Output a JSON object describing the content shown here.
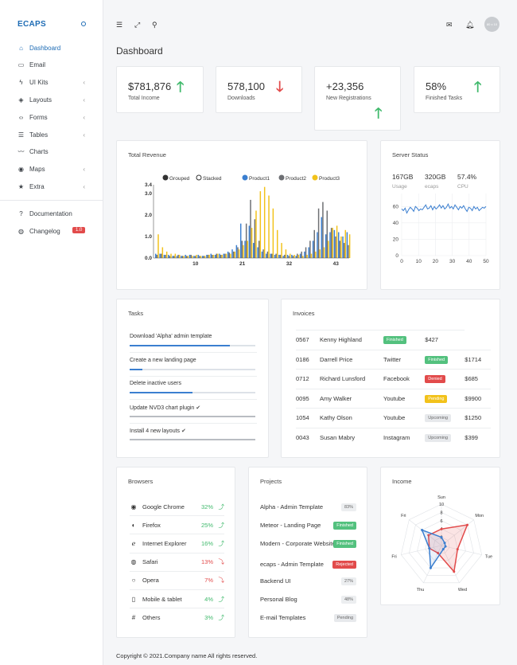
{
  "brand": "ECAPS",
  "sidebar": {
    "items": [
      {
        "label": "Dashboard",
        "icon": "home-icon",
        "glyph": "⌂",
        "chevron": false
      },
      {
        "label": "Email",
        "icon": "inbox-icon",
        "glyph": "▭",
        "chevron": false
      },
      {
        "label": "UI Kits",
        "icon": "bolt-icon",
        "glyph": "ϟ",
        "chevron": true
      },
      {
        "label": "Layouts",
        "icon": "layers-icon",
        "glyph": "◈",
        "chevron": true
      },
      {
        "label": "Forms",
        "icon": "code-icon",
        "glyph": "‹›",
        "chevron": true
      },
      {
        "label": "Tables",
        "icon": "list-icon",
        "glyph": "☰",
        "chevron": true
      },
      {
        "label": "Charts",
        "icon": "trend-icon",
        "glyph": "〰",
        "chevron": false
      },
      {
        "label": "Maps",
        "icon": "target-icon",
        "glyph": "◉",
        "chevron": true
      },
      {
        "label": "Extra",
        "icon": "star-icon",
        "glyph": "★",
        "chevron": true
      }
    ],
    "bottom": [
      {
        "label": "Documentation",
        "icon": "help-icon",
        "glyph": "?"
      },
      {
        "label": "Changelog",
        "icon": "globe-icon",
        "glyph": "◍"
      }
    ],
    "changelog_badge": "1.0",
    "chevron_glyph": "‹"
  },
  "topbar": {
    "avatar_text": "80 x 10"
  },
  "page_title": "Dashboard",
  "stats": [
    {
      "value": "$781,876",
      "label": "Total Income",
      "trend": "up"
    },
    {
      "value": "578,100",
      "label": "Downloads",
      "trend": "down"
    },
    {
      "value": "+23,356",
      "label": "New Registrations",
      "trend": "up"
    },
    {
      "value": "58%",
      "label": "Finished Tasks",
      "trend": "up"
    }
  ],
  "revenue": {
    "title": "Total Revenue",
    "legend": {
      "grouped": "Grouped",
      "stacked": "Stacked"
    },
    "chart_data": {
      "type": "bar",
      "ylim": [
        0,
        3.4
      ],
      "y_ticks": [
        "0.0",
        "1.0",
        "2.0",
        "3.0",
        "3.4"
      ],
      "x_ticks": [
        "10",
        "21",
        "32",
        "43"
      ],
      "series": [
        {
          "name": "Product1",
          "color": "#3b7fd0",
          "values": [
            0.2,
            0.2,
            0.15,
            0.15,
            0.1,
            0.1,
            0.1,
            0.15,
            0.15,
            0.1,
            0.15,
            0.1,
            0.15,
            0.2,
            0.15,
            0.2,
            0.2,
            0.3,
            0.4,
            0.6,
            1.6,
            0.8,
            1.5,
            0.7,
            0.5,
            0.3,
            0.2,
            0.2,
            0.15,
            0.15,
            0.1,
            0.15,
            0.15,
            0.1,
            0.2,
            0.3,
            0.5,
            0.8,
            1.2,
            1.9,
            1.1,
            1.2,
            1.3,
            1.2,
            1.0,
            1.2
          ]
        },
        {
          "name": "Product2",
          "color": "#6d6f73",
          "values": [
            0.15,
            0.2,
            0.15,
            0.1,
            0.1,
            0.15,
            0.1,
            0.1,
            0.15,
            0.1,
            0.1,
            0.1,
            0.15,
            0.15,
            0.2,
            0.15,
            0.2,
            0.25,
            0.3,
            0.5,
            0.8,
            1.6,
            2.7,
            1.8,
            0.8,
            0.4,
            0.3,
            0.2,
            0.2,
            0.15,
            0.15,
            0.1,
            0.1,
            0.2,
            0.3,
            0.5,
            0.8,
            1.3,
            2.3,
            2.6,
            2.2,
            1.4,
            1.0,
            0.8,
            0.7,
            0.6
          ]
        },
        {
          "name": "Product3",
          "color": "#f2c21b",
          "values": [
            1.1,
            0.5,
            0.3,
            0.2,
            0.2,
            0.15,
            0.1,
            0.1,
            0.1,
            0.15,
            0.1,
            0.1,
            0.15,
            0.15,
            0.2,
            0.15,
            0.2,
            0.2,
            0.3,
            0.4,
            0.6,
            0.8,
            1.4,
            2.2,
            3.1,
            3.3,
            2.9,
            2.3,
            1.3,
            0.7,
            0.4,
            0.2,
            0.15,
            0.15,
            0.1,
            0.15,
            0.2,
            0.3,
            0.4,
            0.5,
            0.8,
            1.4,
            1.5,
            1.0,
            1.3,
            1.1
          ]
        }
      ]
    }
  },
  "server": {
    "title": "Server Status",
    "metrics": [
      {
        "value": "167GB",
        "label": "Usage"
      },
      {
        "value": "320GB",
        "label": "ecaps"
      },
      {
        "value": "57.4%",
        "label": "CPU"
      }
    ],
    "chart_data": {
      "type": "line",
      "xlim": [
        0,
        50
      ],
      "ylim": [
        0,
        70
      ],
      "x_ticks": [
        "0",
        "10",
        "20",
        "30",
        "40",
        "50"
      ],
      "y_ticks": [
        "0",
        "20",
        "40",
        "60"
      ],
      "color": "#3b7fd0",
      "values": [
        57,
        55,
        58,
        52,
        56,
        59,
        57,
        54,
        60,
        58,
        55,
        57,
        56,
        59,
        62,
        57,
        58,
        61,
        56,
        60,
        57,
        59,
        62,
        58,
        61,
        57,
        59,
        63,
        58,
        60,
        57,
        62,
        59,
        56,
        60,
        58,
        61,
        57,
        54,
        59,
        58,
        55,
        60,
        57,
        59,
        55,
        57,
        59,
        58,
        60
      ]
    }
  },
  "tasks": {
    "title": "Tasks",
    "items": [
      {
        "label": "Download 'Alpha' admin template",
        "progress": 0.8,
        "done": false
      },
      {
        "label": "Create a new landing page",
        "progress": 0.1,
        "done": false
      },
      {
        "label": "Delete inactive users",
        "progress": 0.5,
        "done": false
      },
      {
        "label": "Update NVD3 chart plugin",
        "progress": 1.0,
        "done": true
      },
      {
        "label": "Install 4 new layouts",
        "progress": 1.0,
        "done": true
      }
    ]
  },
  "invoices": {
    "title": "Invoices",
    "rows": [
      {
        "id": "0567",
        "name": "Kenny Highland",
        "source": "",
        "status": "Finished",
        "status_class": "p-finished",
        "amount": "$427",
        "layout": "short"
      },
      {
        "id": "0186",
        "name": "Darrell Price",
        "source": "Twitter",
        "status": "Finished",
        "status_class": "p-finished",
        "amount": "$1714"
      },
      {
        "id": "0712",
        "name": "Richard Lunsford",
        "source": "Facebook",
        "status": "Denied",
        "status_class": "p-denied",
        "amount": "$685"
      },
      {
        "id": "0095",
        "name": "Amy Walker",
        "source": "Youtube",
        "status": "Pending",
        "status_class": "p-pending",
        "amount": "$9900"
      },
      {
        "id": "1054",
        "name": "Kathy Olson",
        "source": "Youtube",
        "status": "Upcoming",
        "status_class": "p-upcoming",
        "amount": "$1250"
      },
      {
        "id": "0043",
        "name": "Susan Mabry",
        "source": "Instagram",
        "status": "Upcoming",
        "status_class": "p-upcoming",
        "amount": "$399"
      }
    ]
  },
  "browsers": {
    "title": "Browsers",
    "items": [
      {
        "name": "Google Chrome",
        "icon": "chrome-icon",
        "glyph": "◉",
        "pct": "32%",
        "trend": "up"
      },
      {
        "name": "Firefox",
        "icon": "firefox-icon",
        "glyph": "◐",
        "pct": "25%",
        "trend": "up"
      },
      {
        "name": "Internet Explorer",
        "icon": "ie-icon",
        "glyph": "ℯ",
        "pct": "16%",
        "trend": "up"
      },
      {
        "name": "Safari",
        "icon": "safari-icon",
        "glyph": "◍",
        "pct": "13%",
        "trend": "down"
      },
      {
        "name": "Opera",
        "icon": "opera-icon",
        "glyph": "○",
        "pct": "7%",
        "trend": "down"
      },
      {
        "name": "Mobile & tablet",
        "icon": "mobile-icon",
        "glyph": "▯",
        "pct": "4%",
        "trend": "up"
      },
      {
        "name": "Others",
        "icon": "hash-icon",
        "glyph": "#",
        "pct": "3%",
        "trend": "up"
      }
    ],
    "up_glyph": "⤴",
    "down_glyph": "⤵"
  },
  "projects": {
    "title": "Projects",
    "items": [
      {
        "name": "Alpha - Admin Template",
        "badges": [
          {
            "text": "83%",
            "class": "p-pct"
          }
        ]
      },
      {
        "name": "Meteor - Landing Page",
        "badges": [
          {
            "text": "Finished",
            "class": "p-finished"
          }
        ]
      },
      {
        "name": "Modern - Corporate Website",
        "badges": [
          {
            "text": "Finished",
            "class": "p-finished"
          }
        ]
      },
      {
        "name": "ecaps - Admin Template",
        "badges": [
          {
            "text": "Rejected",
            "class": "p-rejected"
          }
        ]
      },
      {
        "name": "Backend UI",
        "badges": [
          {
            "text": "27%",
            "class": "p-pct"
          }
        ]
      },
      {
        "name": "Personal Blog",
        "badges": [
          {
            "text": "48%",
            "class": "p-pct"
          }
        ]
      },
      {
        "name": "E-mail Templates",
        "badges": [
          {
            "text": "Pending",
            "class": "p-upcoming"
          }
        ]
      }
    ]
  },
  "income": {
    "title": "Income",
    "chart_data": {
      "type": "radar",
      "axes": [
        "Sun",
        "Mon",
        "Tue",
        "Wed",
        "Thu",
        "Fri",
        "Fri"
      ],
      "ticks": [
        "2",
        "4",
        "6",
        "8",
        "10"
      ],
      "max": 10,
      "series": [
        {
          "color": "#e24b4b",
          "values": [
            4,
            8,
            4,
            7,
            2,
            3,
            4
          ]
        },
        {
          "color": "#3b7fd0",
          "values": [
            2,
            1,
            1,
            1,
            6,
            3,
            6
          ]
        }
      ]
    }
  },
  "footer": "Copyright © 2021.Company name All rights reserved."
}
